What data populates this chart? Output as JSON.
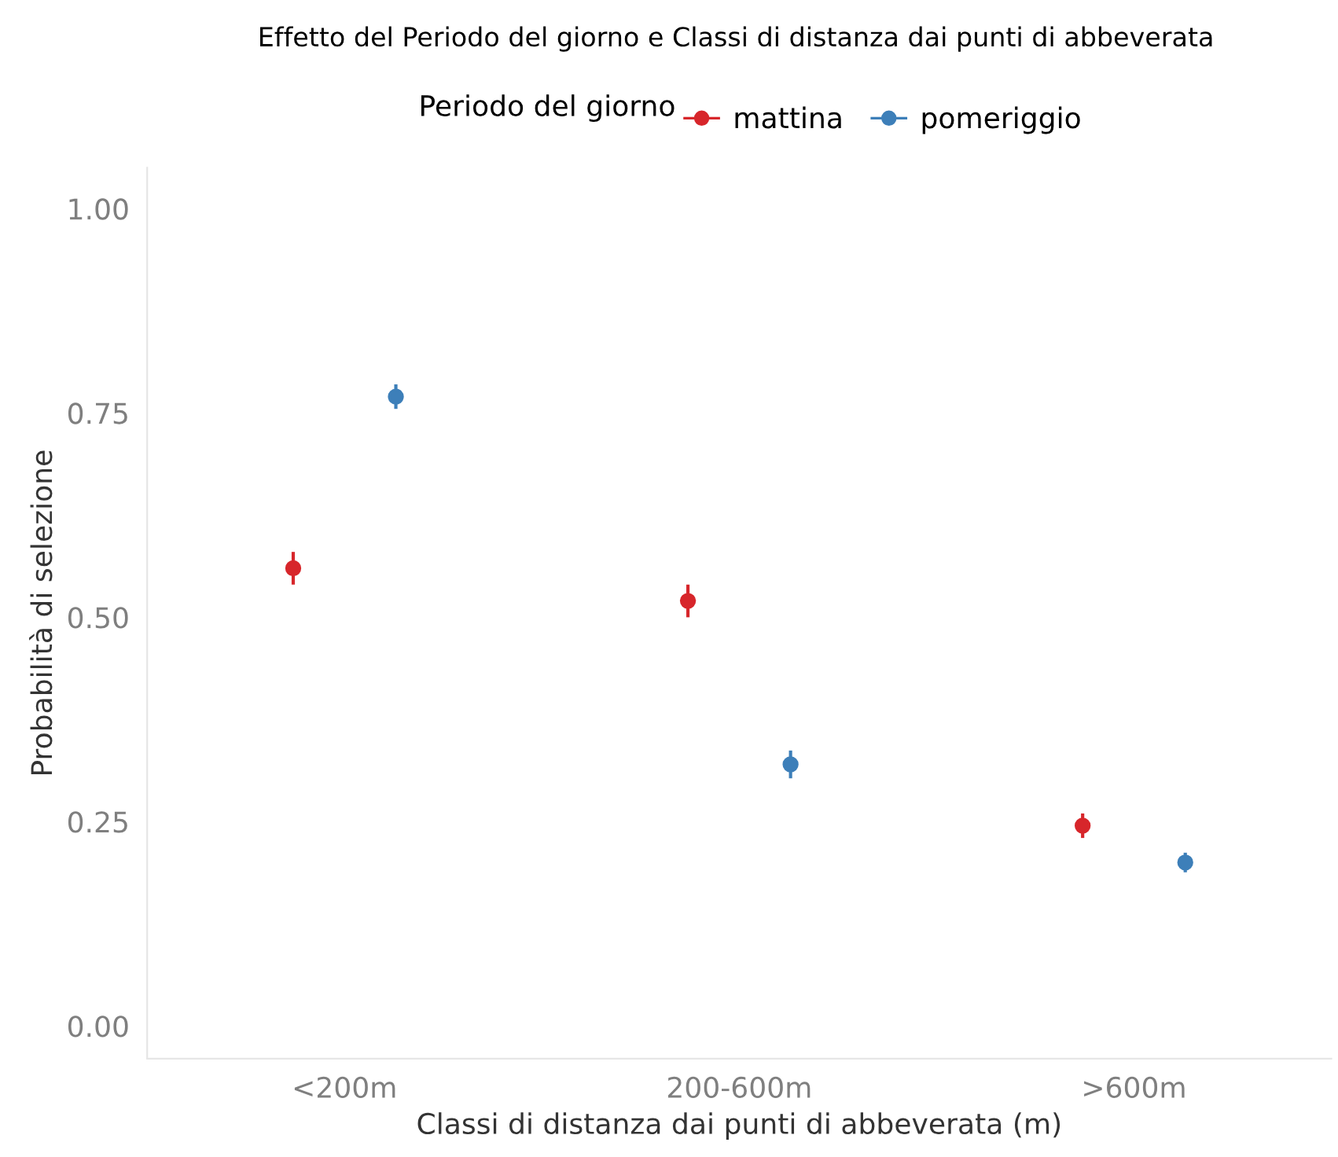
{
  "chart_data": {
    "type": "scatter",
    "title": "Effetto del Periodo del giorno e Classi di distanza dai punti di abbeverata",
    "xlabel": "Classi di distanza dai punti di abbeverata (m)",
    "ylabel": "Probabilità di selezione",
    "legend_title": "Periodo del giorno",
    "categories": [
      "<200m",
      "200-600m",
      ">600m"
    ],
    "series": [
      {
        "name": "mattina",
        "color": "#d7262b",
        "values": [
          0.56,
          0.52,
          0.245
        ],
        "errors": [
          0.02,
          0.02,
          0.015
        ]
      },
      {
        "name": "pomeriggio",
        "color": "#3d7fb9",
        "values": [
          0.77,
          0.32,
          0.2
        ],
        "errors": [
          0.015,
          0.017,
          0.012
        ]
      }
    ],
    "ylim": [
      -0.04,
      1.05
    ],
    "yticks": [
      {
        "value": 0,
        "label": "0.00"
      },
      {
        "value": 0.25,
        "label": "0.25"
      },
      {
        "value": 0.5,
        "label": "0.50"
      },
      {
        "value": 0.75,
        "label": "0.75"
      },
      {
        "value": 1,
        "label": "1.00"
      }
    ],
    "grid": false,
    "legend": "top",
    "marker": "circle"
  }
}
